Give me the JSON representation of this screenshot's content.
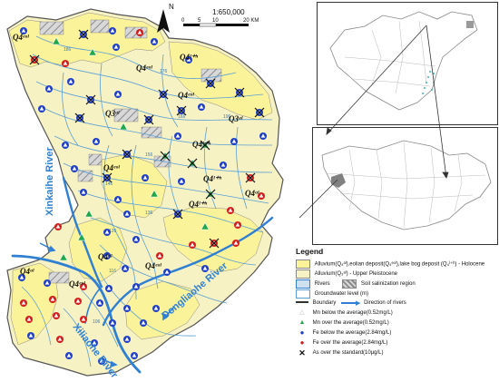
{
  "map": {
    "north_label": "N",
    "scale": {
      "ratio": "1:650,000",
      "ticks": [
        "0",
        "5",
        "10",
        "20 KM"
      ]
    },
    "rivers": [
      "Xinkaihe River",
      "Dongliaohe River",
      "Xiliaohe River"
    ],
    "geo_labels": [
      "Q4ᵉᵒˡ",
      "Q4ˡ⁺ʰ",
      "Q3ᵃˡ",
      "Q4ᵃˡ"
    ],
    "colors": {
      "holocene": "#fbf39a",
      "pleistocene": "#f7f2c4",
      "river": "#2f7fd3",
      "contour": "#5a9fd4",
      "mn_over": "#1fa84a",
      "fe_below": "#1f3fc8",
      "fe_over": "#d41e1e"
    }
  },
  "legend": {
    "title": "Legend",
    "items": [
      {
        "key": "holocene",
        "code": "Q4",
        "text": "Alluvium(Q₄ᵃˡ),eolian deposit(Q₄ᵉᵒˡ),lake bog deposit (Q₄ˡ⁺ʰ) - Holocene"
      },
      {
        "key": "pleistocene",
        "code": "Q3",
        "text": "Alluvium(Q₃ᵃˡ) - Upper Pleistocene"
      },
      {
        "key": "rivers",
        "text": "Rivers"
      },
      {
        "key": "salinization",
        "text": "Soil salinization region"
      },
      {
        "key": "gw_level",
        "text": "Groundwater level (m)"
      },
      {
        "key": "boundary",
        "text": "Boundary"
      },
      {
        "key": "direction",
        "text": "Direction of rivers"
      },
      {
        "key": "mn_below",
        "text": "Mn below the average(0.52mg/L)"
      },
      {
        "key": "mn_over",
        "text": "Mn over the average(0.52mg/L)"
      },
      {
        "key": "fe_below",
        "text": "Fe below the average(2.84mg/L)"
      },
      {
        "key": "fe_over",
        "text": "Fe over the average(2.84mg/L)"
      },
      {
        "key": "as_over",
        "text": "As over the standard(10μg/L)"
      }
    ]
  },
  "contour_values": [
    "176",
    "166",
    "156",
    "146",
    "136",
    "126",
    "116",
    "106",
    "186",
    "196"
  ]
}
